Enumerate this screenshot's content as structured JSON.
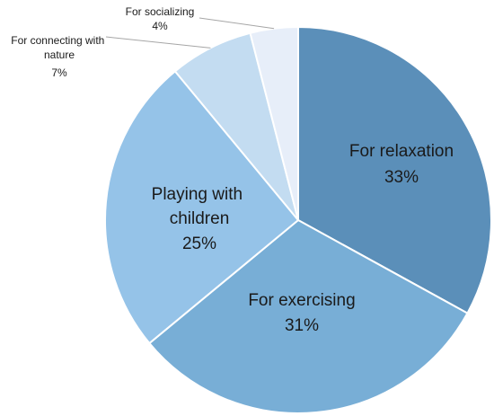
{
  "chart_data": {
    "type": "pie",
    "slices": [
      {
        "label": "For relaxation",
        "value": 33,
        "value_label": "33%",
        "color": "#5b8fb9"
      },
      {
        "label": "For exercising",
        "value": 31,
        "value_label": "31%",
        "color": "#78aed6"
      },
      {
        "label": "Playing with children",
        "value": 25,
        "value_label": "25%",
        "color": "#95c3e8"
      },
      {
        "label": "For connecting with nature",
        "value": 7,
        "value_label": "7%",
        "color": "#c3dcf1"
      },
      {
        "label": "For socializing",
        "value": 4,
        "value_label": "4%",
        "color": "#e7eef9"
      }
    ],
    "title": "",
    "legend": "none"
  }
}
